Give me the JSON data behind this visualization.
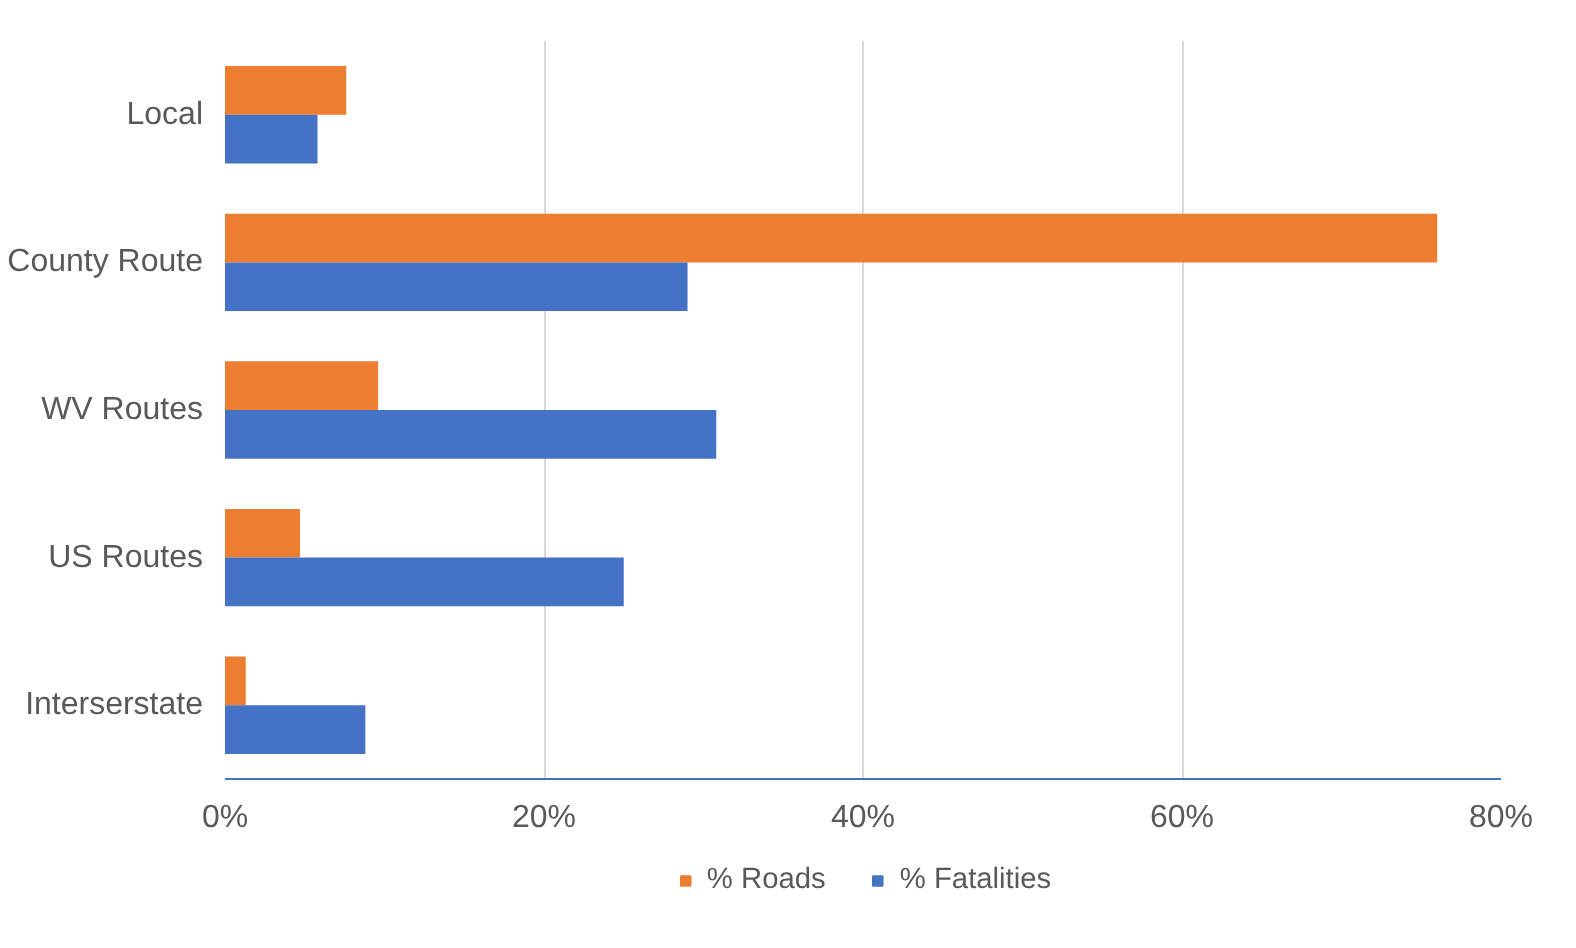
{
  "chart_data": {
    "type": "bar",
    "orientation": "horizontal",
    "categories": [
      "Local",
      "County Route",
      "WV Routes",
      "US Routes",
      "Interserstate"
    ],
    "series": [
      {
        "name": "% Roads",
        "color": "#ed7d31",
        "values": [
          7.6,
          76,
          9.6,
          4.7,
          1.3
        ]
      },
      {
        "name": "% Fatalities",
        "color": "#4472c4",
        "values": [
          5.8,
          29,
          30.8,
          25,
          8.8
        ]
      }
    ],
    "xlim": [
      0,
      80
    ],
    "xticks": [
      {
        "value": 0,
        "label": "0%"
      },
      {
        "value": 20,
        "label": "20%"
      },
      {
        "value": 40,
        "label": "40%"
      },
      {
        "value": 60,
        "label": "60%"
      },
      {
        "value": 80,
        "label": "80%"
      }
    ],
    "grid": "x",
    "legend": "bottom"
  }
}
